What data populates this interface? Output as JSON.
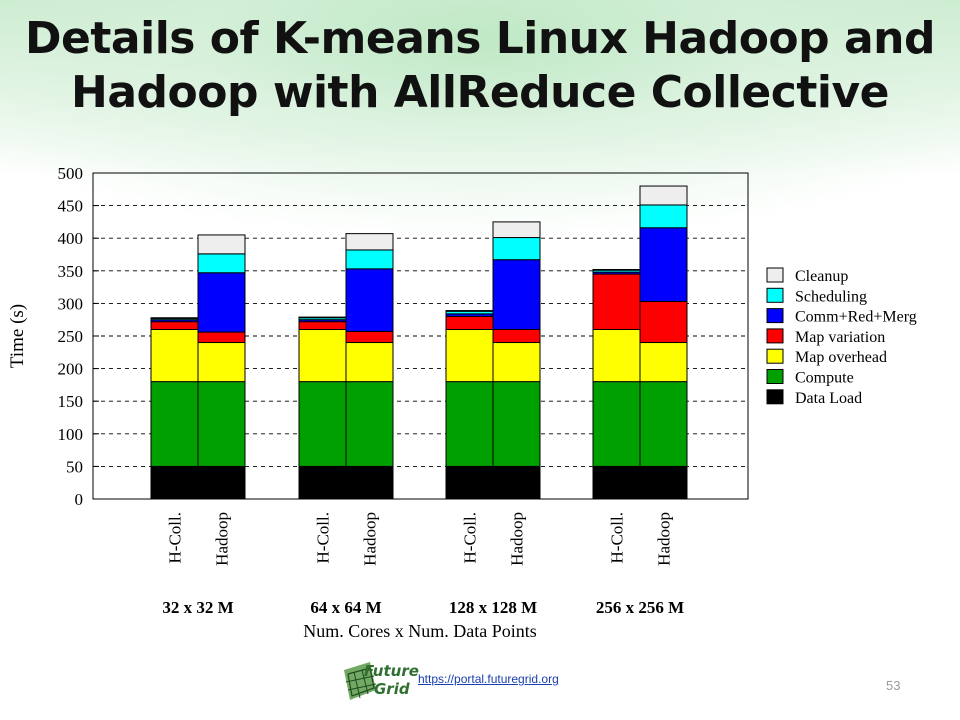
{
  "slide": {
    "title_line1": "Details of K-means Linux Hadoop and",
    "title_line2": "Hadoop with AllReduce Collective",
    "footer_link": "https://portal.futuregrid.org",
    "page_number": "53",
    "logo_word1": "Future",
    "logo_word2": "Grid"
  },
  "chart_data": {
    "type": "bar",
    "stacked": true,
    "ylabel": "Time (s)",
    "xlabel": "Num. Cores x Num. Data Points",
    "ylim": [
      0,
      500
    ],
    "yticks": [
      0,
      50,
      100,
      150,
      200,
      250,
      300,
      350,
      400,
      450,
      500
    ],
    "grid": true,
    "legend_position": "right",
    "groups": [
      "32 x 32 M",
      "64 x 64 M",
      "128 x 128 M",
      "256 x 256 M"
    ],
    "bar_labels": [
      "H-Coll.",
      "Hadoop"
    ],
    "series": [
      {
        "name": "Data Load",
        "color": "#000000",
        "values": [
          [
            50,
            50
          ],
          [
            50,
            50
          ],
          [
            50,
            50
          ],
          [
            50,
            50
          ]
        ]
      },
      {
        "name": "Compute",
        "color": "#00a000",
        "values": [
          [
            130,
            130
          ],
          [
            130,
            130
          ],
          [
            130,
            130
          ],
          [
            130,
            130
          ]
        ]
      },
      {
        "name": "Map overhead",
        "color": "#ffff00",
        "values": [
          [
            80,
            60
          ],
          [
            80,
            60
          ],
          [
            80,
            60
          ],
          [
            80,
            60
          ]
        ]
      },
      {
        "name": "Map variation",
        "color": "#ff0000",
        "values": [
          [
            12,
            16
          ],
          [
            12,
            17
          ],
          [
            20,
            20
          ],
          [
            85,
            63
          ]
        ]
      },
      {
        "name": "Comm+Red+Merg",
        "color": "#0000ff",
        "values": [
          [
            3,
            91
          ],
          [
            3,
            96
          ],
          [
            4,
            107
          ],
          [
            3,
            113
          ]
        ]
      },
      {
        "name": "Scheduling",
        "color": "#00ffff",
        "values": [
          [
            2,
            29
          ],
          [
            3,
            29
          ],
          [
            4,
            34
          ],
          [
            3,
            35
          ]
        ]
      },
      {
        "name": "Cleanup",
        "color": "#eeeeee",
        "values": [
          [
            1,
            29
          ],
          [
            1,
            25
          ],
          [
            1,
            24
          ],
          [
            1,
            29
          ]
        ]
      }
    ]
  }
}
